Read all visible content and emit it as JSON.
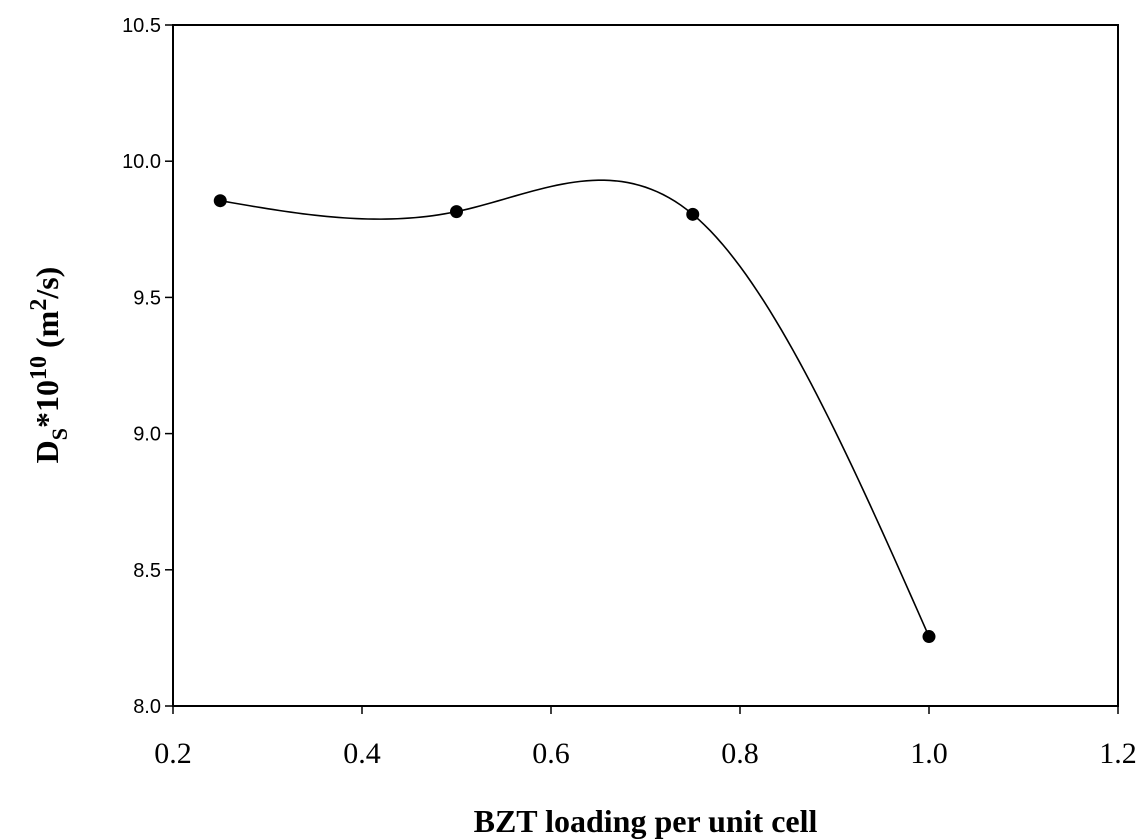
{
  "chart_data": {
    "type": "line",
    "x": [
      0.25,
      0.5,
      0.75,
      1.0
    ],
    "y": [
      9.855,
      9.815,
      9.805,
      8.255
    ],
    "smooth": true,
    "markers": "filled-circle",
    "xlabel": "BZT loading per unit cell",
    "ylabel": {
      "base": "D",
      "sub": "S",
      "mid": "*10",
      "sup": "10",
      "open": " (m",
      "unit_sup": "2",
      "close": "/s)"
    },
    "xlim": [
      0.2,
      1.2
    ],
    "ylim": [
      8.0,
      10.5
    ],
    "xticks": [
      "0.2",
      "0.4",
      "0.6",
      "0.8",
      "1.0",
      "1.2"
    ],
    "yticks": [
      "8.0",
      "8.5",
      "9.0",
      "9.5",
      "10.0",
      "10.5"
    ],
    "grid": false,
    "legend": "none"
  }
}
